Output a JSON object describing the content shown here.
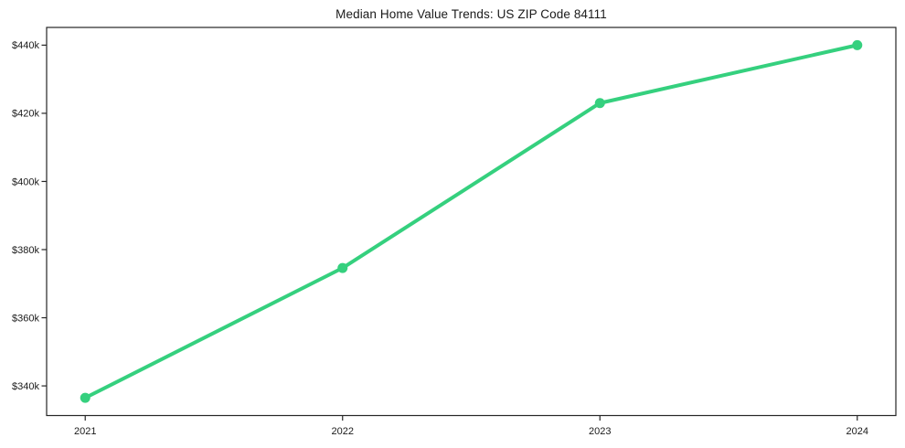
{
  "chart_data": {
    "type": "line",
    "title": "Median Home Value Trends: US ZIP Code 84111",
    "xlabel": "",
    "ylabel": "",
    "x": [
      2021,
      2022,
      2023,
      2024
    ],
    "x_tick_labels": [
      "2021",
      "2022",
      "2023",
      "2024"
    ],
    "series": [
      {
        "name": "median-home-value",
        "values": [
          336500,
          374600,
          423000,
          440000
        ],
        "color": "#35d07e",
        "marker": "circle",
        "line_width": 4,
        "marker_radius": 5.5
      }
    ],
    "y_ticks": [
      340000,
      360000,
      380000,
      400000,
      420000,
      440000
    ],
    "y_tick_labels": [
      "$340k",
      "$360k",
      "$380k",
      "$400k",
      "$420k",
      "$440k"
    ],
    "xlim": [
      2020.85,
      2024.15
    ],
    "ylim": [
      331300,
      445200
    ],
    "grid": false,
    "legend": "none",
    "text_color": "#1a1a1a",
    "spine_color": "#262626",
    "background": "#ffffff"
  }
}
